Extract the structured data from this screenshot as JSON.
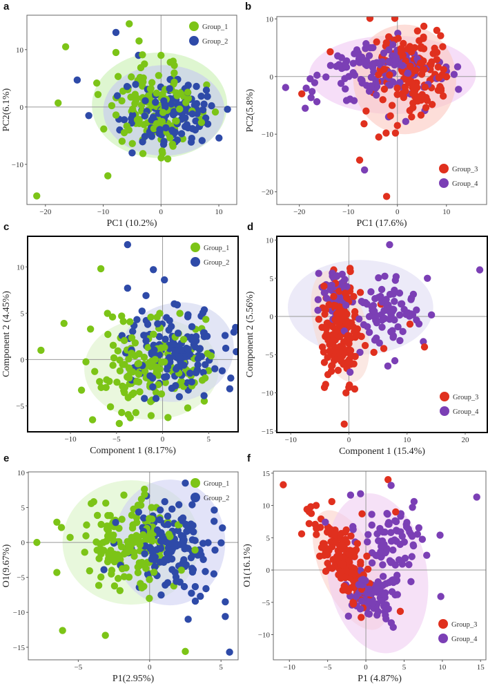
{
  "chart_data": [
    {
      "type": "scatter",
      "panel": "a",
      "xlabel": "PC1 (10.2%)",
      "ylabel": "PC2(6.1%)",
      "xlim": [
        -23.2,
        13.1
      ],
      "ylim": [
        -17,
        16
      ],
      "xticks": [
        -20,
        -10,
        0,
        10
      ],
      "yticks": [
        -10,
        0,
        10
      ],
      "legend": "top-right",
      "groups": [
        {
          "name": "Group_1",
          "color": "#7cc417",
          "outliers": [
            [
              -5.5,
              14.5
            ],
            [
              -3.8,
              11.5
            ],
            [
              -16.5,
              10.5
            ],
            [
              -7.8,
              9.5
            ],
            [
              -17.8,
              0.7
            ],
            [
              -9.2,
              -12
            ],
            [
              -21.5,
              -15.5
            ],
            [
              0,
              9
            ],
            [
              1.6,
              7.8
            ]
          ],
          "clusters": [
            {
              "center": [
                -1,
                0
              ],
              "sd": [
                4,
                3.5
              ],
              "rho": 0,
              "n": 140
            }
          ]
        },
        {
          "name": "Group_2",
          "color": "#2e4aa8",
          "outliers": [
            [
              -7.8,
              13
            ],
            [
              -3.9,
              9
            ],
            [
              -14.5,
              4.7
            ],
            [
              -12.5,
              -1.5
            ],
            [
              11.5,
              -0.4
            ],
            [
              -5,
              -8
            ]
          ],
          "clusters": [
            {
              "center": [
                2,
                -1
              ],
              "sd": [
                4,
                3
              ],
              "rho": 0,
              "n": 130
            }
          ]
        }
      ],
      "ellipses": [
        {
          "group": "Group_1",
          "center": [
            -0.25,
            0.3
          ],
          "radii": [
            11.7,
            9.2
          ],
          "angle": 0,
          "color": "#c8f0b0"
        },
        {
          "group": "Group_2",
          "center": [
            0.5,
            -0.6
          ],
          "radii": [
            10.5,
            7.9
          ],
          "angle": 0,
          "color": "#c4c8f2"
        }
      ]
    },
    {
      "type": "scatter",
      "panel": "b",
      "xlabel": "PC1 (17.6%)",
      "ylabel": "PC2(5.8%)",
      "xlim": [
        -24.6,
        18.2
      ],
      "ylim": [
        -22.2,
        10.4
      ],
      "xticks": [
        -20,
        -10,
        0,
        10
      ],
      "yticks": [
        -20,
        -10,
        0,
        10
      ],
      "legend": "bottom-right",
      "groups": [
        {
          "name": "Group_3",
          "color": "#e0301e",
          "outliers": [
            [
              -13.7,
              4.3
            ],
            [
              -19.5,
              -3
            ],
            [
              -6.8,
              -8.2
            ],
            [
              -3.8,
              -10.5
            ],
            [
              -2.3,
              -9.8
            ],
            [
              -0.4,
              -9.8
            ],
            [
              -7.7,
              -14.5
            ],
            [
              -2.2,
              -20.8
            ],
            [
              0,
              -8.5
            ],
            [
              2.9,
              -7
            ]
          ],
          "clusters": [
            {
              "center": [
                2.5,
                1
              ],
              "sd": [
                3.5,
                3.5
              ],
              "rho": 0,
              "n": 140
            }
          ]
        },
        {
          "name": "Group_4",
          "color": "#7b3fb5",
          "outliers": [
            [
              -22.8,
              -1.9
            ],
            [
              -18.8,
              -5.5
            ],
            [
              -17.4,
              -2.6
            ],
            [
              -6.7,
              -16.2
            ],
            [
              -1.8,
              -7
            ],
            [
              1.7,
              -7.8
            ],
            [
              5.6,
              -5.9
            ],
            [
              -5.5,
              5
            ]
          ],
          "clusters": [
            {
              "center": [
                -3,
                1
              ],
              "sd": [
                6,
                2.5
              ],
              "rho": 0,
              "n": 130
            }
          ]
        }
      ],
      "ellipses": [
        {
          "group": "Group_4",
          "center": [
            -1,
            0.3
          ],
          "radii": [
            17,
            6.8
          ],
          "angle": 0,
          "color": "#f0c8f4"
        },
        {
          "group": "Group_3",
          "center": [
            1.5,
            -0.5
          ],
          "radii": [
            10.5,
            9.5
          ],
          "angle": 0,
          "color": "#fbc8c0"
        }
      ]
    },
    {
      "type": "scatter",
      "panel": "c",
      "xlabel": "Component 1 (8.17%)",
      "ylabel": "Component 2 (4.45%)",
      "xlim": [
        -14.65,
        8.2
      ],
      "ylim": [
        -7.8,
        13.3
      ],
      "xticks": [
        -10,
        -5,
        0,
        5
      ],
      "yticks": [
        -5,
        0,
        5,
        10
      ],
      "legend": "top-right",
      "groups": [
        {
          "name": "Group_1",
          "color": "#7cc417",
          "outliers": [
            [
              -13.2,
              1
            ],
            [
              -10.7,
              3.9
            ],
            [
              -6.7,
              9.8
            ],
            [
              -7.6,
              -6.5
            ],
            [
              -4.7,
              -6.9
            ],
            [
              -8.8,
              -3.3
            ]
          ],
          "clusters": [
            {
              "center": [
                -1.5,
                -1
              ],
              "sd": [
                2.8,
                2.3
              ],
              "rho": 0,
              "n": 150
            }
          ]
        },
        {
          "name": "Group_2",
          "color": "#2e4aa8",
          "outliers": [
            [
              -3.8,
              12.4
            ],
            [
              -1,
              9.7
            ],
            [
              0.2,
              8.6
            ],
            [
              -3.8,
              7.7
            ],
            [
              -1.8,
              6.9
            ],
            [
              1.6,
              5.9
            ],
            [
              7.4,
              -2
            ],
            [
              4.5,
              -3.9
            ]
          ],
          "clusters": [
            {
              "center": [
                1.5,
                1
              ],
              "sd": [
                2.5,
                2
              ],
              "rho": 0,
              "n": 140
            }
          ]
        }
      ],
      "ellipses": [
        {
          "group": "Group_1",
          "center": [
            -1.2,
            -1
          ],
          "radii": [
            7.3,
            5.5
          ],
          "angle": 0,
          "color": "#dcf2c8"
        },
        {
          "group": "Group_2",
          "center": [
            1.5,
            0.8
          ],
          "radii": [
            6.3,
            5.3
          ],
          "angle": -15,
          "color": "#cfd4ee"
        }
      ]
    },
    {
      "type": "scatter",
      "panel": "d",
      "xlabel": "Component 1 (15.4%)",
      "ylabel": "Component 2 (5.56%)",
      "xlim": [
        -12.4,
        23.8
      ],
      "ylim": [
        -15.2,
        10.5
      ],
      "xticks": [
        -10,
        0,
        10,
        20
      ],
      "yticks": [
        -15,
        -10,
        -5,
        0,
        5,
        10
      ],
      "legend": "bottom-right",
      "groups": [
        {
          "name": "Group_3",
          "color": "#e0301e",
          "outliers": [
            [
              0.2,
              6.3
            ],
            [
              -4,
              -8.9
            ],
            [
              -0.8,
              -14.1
            ],
            [
              -0.5,
              -10
            ],
            [
              1,
              -9.5
            ],
            [
              13,
              -4
            ],
            [
              10.5,
              -1
            ],
            [
              6,
              -4.2
            ],
            [
              4.3,
              -4.7
            ],
            [
              2.8,
              -3.8
            ],
            [
              5.5,
              1.6
            ]
          ],
          "clusters": [
            {
              "center": [
                -1.5,
                -1.5
              ],
              "sd": [
                1.5,
                3
              ],
              "rho": 0,
              "n": 170
            }
          ]
        },
        {
          "name": "Group_4",
          "color": "#7b3fb5",
          "outliers": [
            [
              7,
              9.4
            ],
            [
              22.5,
              6.1
            ],
            [
              13.5,
              5
            ],
            [
              14.2,
              0.2
            ],
            [
              6.7,
              -6.5
            ],
            [
              7.9,
              -5.8
            ],
            [
              12.8,
              -3.3
            ],
            [
              -5.3,
              2.2
            ],
            [
              1.9,
              -4.7
            ],
            [
              0.2,
              -7.3
            ]
          ],
          "clusters": [
            {
              "center": [
                -2,
                3
              ],
              "sd": [
                1.3,
                1.5
              ],
              "rho": 0,
              "n": 60
            },
            {
              "center": [
                7,
                0.5
              ],
              "sd": [
                3,
                2
              ],
              "rho": 0,
              "n": 80
            }
          ]
        }
      ],
      "ellipses": [
        {
          "group": "Group_4",
          "center": [
            2,
            1.2
          ],
          "radii": [
            12.5,
            6.2
          ],
          "angle": 0,
          "color": "#e0dcf4"
        },
        {
          "group": "Group_3",
          "center": [
            -1.5,
            -1.3
          ],
          "radii": [
            4.5,
            7.5
          ],
          "angle": -15,
          "color": "#f8d8d0"
        }
      ]
    },
    {
      "type": "scatter",
      "panel": "e",
      "xlabel": "P1(2.95%)",
      "ylabel": "O1(9.67%)",
      "xlim": [
        -8.5,
        6.2
      ],
      "ylim": [
        -16.8,
        10.1
      ],
      "xticks": [
        -5,
        0,
        5
      ],
      "yticks": [
        -15,
        -10,
        -5,
        0,
        5,
        10
      ],
      "legend": "top-right",
      "groups": [
        {
          "name": "Group_1",
          "color": "#7cc417",
          "outliers": [
            [
              -7.9,
              0
            ],
            [
              -6.1,
              -12.6
            ],
            [
              -3.1,
              -13.3
            ],
            [
              2.5,
              -15.6
            ],
            [
              -6.5,
              2.9
            ],
            [
              -6.5,
              -4.3
            ]
          ],
          "clusters": [
            {
              "center": [
                -1.5,
                0
              ],
              "sd": [
                1.8,
                3.3
              ],
              "rho": 0,
              "n": 150
            }
          ]
        },
        {
          "name": "Group_2",
          "color": "#2e4aa8",
          "outliers": [
            [
              5.6,
              -15.7
            ],
            [
              5.3,
              -10.6
            ],
            [
              5.3,
              -8.5
            ],
            [
              2.7,
              -11
            ],
            [
              3.2,
              -8.4
            ],
            [
              2.5,
              8.5
            ],
            [
              -3.2,
              -3.9
            ],
            [
              4.5,
              -4.5
            ]
          ],
          "clusters": [
            {
              "center": [
                1.3,
                0
              ],
              "sd": [
                1.5,
                3.3
              ],
              "rho": 0,
              "n": 150
            }
          ]
        }
      ],
      "ellipses": [
        {
          "group": "Group_1",
          "center": [
            -1.3,
            0
          ],
          "radii": [
            4.8,
            8.9
          ],
          "angle": 0,
          "color": "#d8f4c4"
        },
        {
          "group": "Group_2",
          "center": [
            1.4,
            0
          ],
          "radii": [
            3.9,
            9
          ],
          "angle": 0,
          "color": "#cfd0f4"
        }
      ]
    },
    {
      "type": "scatter",
      "panel": "f",
      "xlabel": "P1 (4.87%)",
      "ylabel": "O1(16.1%)",
      "xlim": [
        -12.1,
        15.7
      ],
      "ylim": [
        -13.9,
        15.3
      ],
      "xticks": [
        -10,
        -5,
        0,
        5,
        10,
        15
      ],
      "yticks": [
        -10,
        -5,
        0,
        5,
        10,
        15
      ],
      "legend": "bottom-right",
      "groups": [
        {
          "name": "Group_3",
          "color": "#e0301e",
          "outliers": [
            [
              -10.8,
              13.2
            ],
            [
              -8.4,
              5.6
            ],
            [
              -7.7,
              9.4
            ],
            [
              -7.2,
              9.8
            ],
            [
              -6.5,
              10
            ],
            [
              2.9,
              14
            ],
            [
              4.5,
              -6.4
            ],
            [
              3.9,
              9
            ],
            [
              -0.5,
              8.7
            ]
          ],
          "clusters": [
            {
              "center": [
                -3,
                1.5
              ],
              "sd": [
                1.7,
                3.5
              ],
              "rho": -0.7,
              "n": 150
            }
          ]
        },
        {
          "name": "Group_4",
          "color": "#7b3fb5",
          "outliers": [
            [
              14.5,
              11.3
            ],
            [
              9.7,
              5.4
            ],
            [
              9.8,
              -4.1
            ],
            [
              3.3,
              13.1
            ],
            [
              -2,
              11.6
            ],
            [
              -0.7,
              11.8
            ],
            [
              -5.3,
              7.4
            ],
            [
              6.3,
              10.6
            ],
            [
              5.9,
              -1.8
            ]
          ],
          "clusters": [
            {
              "center": [
                0.5,
                -4
              ],
              "sd": [
                1.5,
                2
              ],
              "rho": -0.5,
              "n": 90
            },
            {
              "center": [
                3.5,
                4
              ],
              "sd": [
                2,
                3
              ],
              "rho": 0,
              "n": 80
            }
          ]
        }
      ],
      "ellipses": [
        {
          "group": "Group_3",
          "center": [
            -2,
            0
          ],
          "radii": [
            3.8,
            10
          ],
          "angle": -25,
          "color": "#fbd0c8"
        },
        {
          "group": "Group_4",
          "center": [
            1.5,
            -0.5
          ],
          "radii": [
            6.5,
            12.5
          ],
          "angle": -10,
          "color": "#f0cdf2"
        }
      ]
    }
  ]
}
